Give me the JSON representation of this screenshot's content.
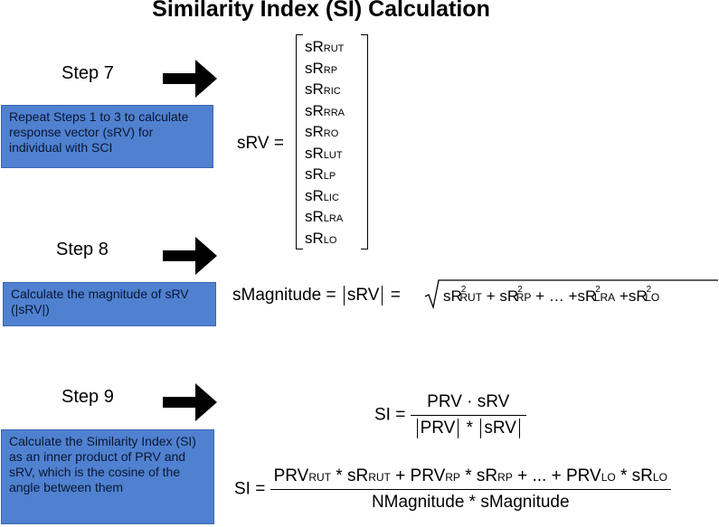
{
  "title": "Similarity Index (SI) Calculation",
  "steps": [
    {
      "label": "Step 7",
      "box": "Repeat Steps 1 to 3 to calculate response vector (sRV)  for individual with SCI"
    },
    {
      "label": "Step 8",
      "box": "Calculate the magnitude of sRV (|sRV|)"
    },
    {
      "label": "Step 9",
      "box": "Calculate the Similarity Index (SI) as an inner product of PRV and sRV, which is the cosine of the angle between them"
    }
  ],
  "srv": {
    "lhs": "sRV =",
    "components": [
      {
        "base": "sR",
        "sub": "RUT"
      },
      {
        "base": "sR",
        "sub": "RP"
      },
      {
        "base": "sR",
        "sub": "RIC"
      },
      {
        "base": "sR",
        "sub": "RRA"
      },
      {
        "base": "sR",
        "sub": "RO"
      },
      {
        "base": "sR",
        "sub": "LUT"
      },
      {
        "base": "sR",
        "sub": "LP"
      },
      {
        "base": "sR",
        "sub": "LIC"
      },
      {
        "base": "sR",
        "sub": "LRA"
      },
      {
        "base": "sR",
        "sub": "LO"
      }
    ]
  },
  "magnitude": {
    "lhs": "sMagnitude =",
    "mid": "sRV",
    "eq": "=",
    "sqrt": "√",
    "terms": {
      "t1_base": "sR",
      "t1_sub": "RUT",
      "plus1": "+",
      "t2_base": "sR",
      "t2_sub": "RP",
      "dots": "+  …  +",
      "t3_base": "sR",
      "t3_sub": "LRA",
      "plus3": "+",
      "t4_base": "sR",
      "t4_sub": "LO",
      "exp": "2"
    }
  },
  "si1": {
    "lhs": "SI =",
    "num": "PRV · sRV",
    "den_a": "PRV",
    "den_op": "*",
    "den_b": "sRV"
  },
  "si2": {
    "lhs": "SI =",
    "n1": "PRV",
    "n1s": "RUT",
    "op1": " * ",
    "n2": "sR",
    "n2s": "RUT",
    "plus1": " + ",
    "n3": "PRV",
    "n3s": "RP",
    "op2": " * ",
    "n4": "sR",
    "n4s": "RP",
    "mid": " + ... + ",
    "n5": "PRV",
    "n5s": "LO",
    "op3": " * ",
    "n6": "sR",
    "n6s": "LO",
    "den": "NMagnitude * sMagnitude"
  }
}
